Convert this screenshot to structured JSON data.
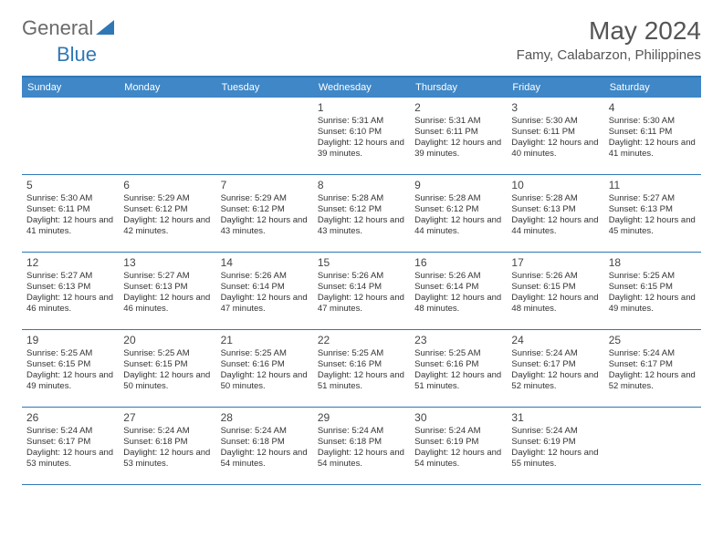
{
  "logo": {
    "text1": "General",
    "text2": "Blue"
  },
  "title": "May 2024",
  "location": "Famy, Calabarzon, Philippines",
  "header_bg": "#3f87c7",
  "border_color": "#2f78b5",
  "dows": [
    "Sunday",
    "Monday",
    "Tuesday",
    "Wednesday",
    "Thursday",
    "Friday",
    "Saturday"
  ],
  "weeks": [
    [
      {
        "day": "",
        "sr": "",
        "ss": "",
        "dl": ""
      },
      {
        "day": "",
        "sr": "",
        "ss": "",
        "dl": ""
      },
      {
        "day": "",
        "sr": "",
        "ss": "",
        "dl": ""
      },
      {
        "day": "1",
        "sr": "Sunrise: 5:31 AM",
        "ss": "Sunset: 6:10 PM",
        "dl": "Daylight: 12 hours and 39 minutes."
      },
      {
        "day": "2",
        "sr": "Sunrise: 5:31 AM",
        "ss": "Sunset: 6:11 PM",
        "dl": "Daylight: 12 hours and 39 minutes."
      },
      {
        "day": "3",
        "sr": "Sunrise: 5:30 AM",
        "ss": "Sunset: 6:11 PM",
        "dl": "Daylight: 12 hours and 40 minutes."
      },
      {
        "day": "4",
        "sr": "Sunrise: 5:30 AM",
        "ss": "Sunset: 6:11 PM",
        "dl": "Daylight: 12 hours and 41 minutes."
      }
    ],
    [
      {
        "day": "5",
        "sr": "Sunrise: 5:30 AM",
        "ss": "Sunset: 6:11 PM",
        "dl": "Daylight: 12 hours and 41 minutes."
      },
      {
        "day": "6",
        "sr": "Sunrise: 5:29 AM",
        "ss": "Sunset: 6:12 PM",
        "dl": "Daylight: 12 hours and 42 minutes."
      },
      {
        "day": "7",
        "sr": "Sunrise: 5:29 AM",
        "ss": "Sunset: 6:12 PM",
        "dl": "Daylight: 12 hours and 43 minutes."
      },
      {
        "day": "8",
        "sr": "Sunrise: 5:28 AM",
        "ss": "Sunset: 6:12 PM",
        "dl": "Daylight: 12 hours and 43 minutes."
      },
      {
        "day": "9",
        "sr": "Sunrise: 5:28 AM",
        "ss": "Sunset: 6:12 PM",
        "dl": "Daylight: 12 hours and 44 minutes."
      },
      {
        "day": "10",
        "sr": "Sunrise: 5:28 AM",
        "ss": "Sunset: 6:13 PM",
        "dl": "Daylight: 12 hours and 44 minutes."
      },
      {
        "day": "11",
        "sr": "Sunrise: 5:27 AM",
        "ss": "Sunset: 6:13 PM",
        "dl": "Daylight: 12 hours and 45 minutes."
      }
    ],
    [
      {
        "day": "12",
        "sr": "Sunrise: 5:27 AM",
        "ss": "Sunset: 6:13 PM",
        "dl": "Daylight: 12 hours and 46 minutes."
      },
      {
        "day": "13",
        "sr": "Sunrise: 5:27 AM",
        "ss": "Sunset: 6:13 PM",
        "dl": "Daylight: 12 hours and 46 minutes."
      },
      {
        "day": "14",
        "sr": "Sunrise: 5:26 AM",
        "ss": "Sunset: 6:14 PM",
        "dl": "Daylight: 12 hours and 47 minutes."
      },
      {
        "day": "15",
        "sr": "Sunrise: 5:26 AM",
        "ss": "Sunset: 6:14 PM",
        "dl": "Daylight: 12 hours and 47 minutes."
      },
      {
        "day": "16",
        "sr": "Sunrise: 5:26 AM",
        "ss": "Sunset: 6:14 PM",
        "dl": "Daylight: 12 hours and 48 minutes."
      },
      {
        "day": "17",
        "sr": "Sunrise: 5:26 AM",
        "ss": "Sunset: 6:15 PM",
        "dl": "Daylight: 12 hours and 48 minutes."
      },
      {
        "day": "18",
        "sr": "Sunrise: 5:25 AM",
        "ss": "Sunset: 6:15 PM",
        "dl": "Daylight: 12 hours and 49 minutes."
      }
    ],
    [
      {
        "day": "19",
        "sr": "Sunrise: 5:25 AM",
        "ss": "Sunset: 6:15 PM",
        "dl": "Daylight: 12 hours and 49 minutes."
      },
      {
        "day": "20",
        "sr": "Sunrise: 5:25 AM",
        "ss": "Sunset: 6:15 PM",
        "dl": "Daylight: 12 hours and 50 minutes."
      },
      {
        "day": "21",
        "sr": "Sunrise: 5:25 AM",
        "ss": "Sunset: 6:16 PM",
        "dl": "Daylight: 12 hours and 50 minutes."
      },
      {
        "day": "22",
        "sr": "Sunrise: 5:25 AM",
        "ss": "Sunset: 6:16 PM",
        "dl": "Daylight: 12 hours and 51 minutes."
      },
      {
        "day": "23",
        "sr": "Sunrise: 5:25 AM",
        "ss": "Sunset: 6:16 PM",
        "dl": "Daylight: 12 hours and 51 minutes."
      },
      {
        "day": "24",
        "sr": "Sunrise: 5:24 AM",
        "ss": "Sunset: 6:17 PM",
        "dl": "Daylight: 12 hours and 52 minutes."
      },
      {
        "day": "25",
        "sr": "Sunrise: 5:24 AM",
        "ss": "Sunset: 6:17 PM",
        "dl": "Daylight: 12 hours and 52 minutes."
      }
    ],
    [
      {
        "day": "26",
        "sr": "Sunrise: 5:24 AM",
        "ss": "Sunset: 6:17 PM",
        "dl": "Daylight: 12 hours and 53 minutes."
      },
      {
        "day": "27",
        "sr": "Sunrise: 5:24 AM",
        "ss": "Sunset: 6:18 PM",
        "dl": "Daylight: 12 hours and 53 minutes."
      },
      {
        "day": "28",
        "sr": "Sunrise: 5:24 AM",
        "ss": "Sunset: 6:18 PM",
        "dl": "Daylight: 12 hours and 54 minutes."
      },
      {
        "day": "29",
        "sr": "Sunrise: 5:24 AM",
        "ss": "Sunset: 6:18 PM",
        "dl": "Daylight: 12 hours and 54 minutes."
      },
      {
        "day": "30",
        "sr": "Sunrise: 5:24 AM",
        "ss": "Sunset: 6:19 PM",
        "dl": "Daylight: 12 hours and 54 minutes."
      },
      {
        "day": "31",
        "sr": "Sunrise: 5:24 AM",
        "ss": "Sunset: 6:19 PM",
        "dl": "Daylight: 12 hours and 55 minutes."
      },
      {
        "day": "",
        "sr": "",
        "ss": "",
        "dl": ""
      }
    ]
  ]
}
